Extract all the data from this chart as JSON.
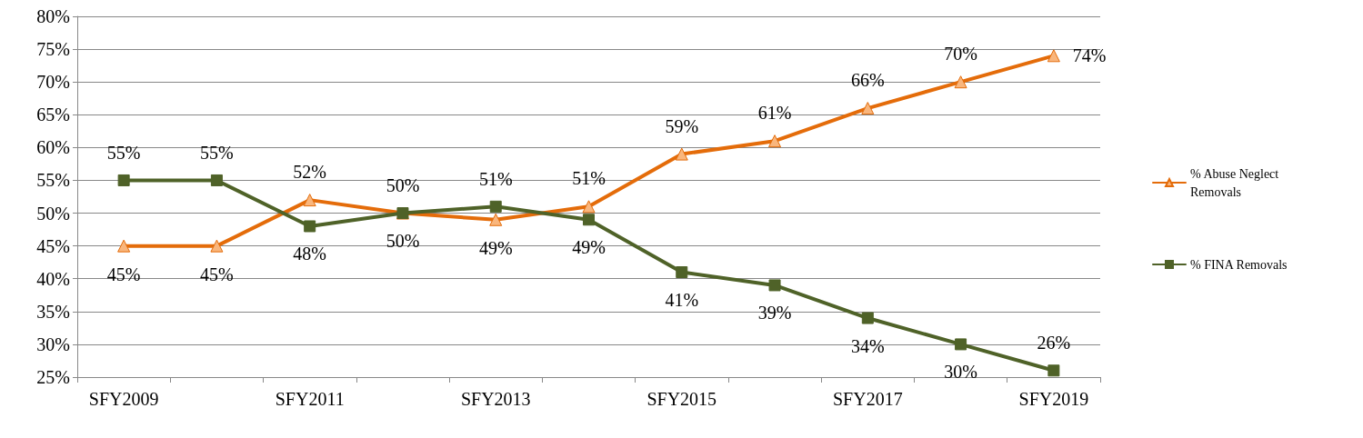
{
  "chart_data": {
    "type": "line",
    "categories": [
      "SFY2009",
      null,
      "SFY2011",
      null,
      "SFY2013",
      null,
      "SFY2015",
      null,
      "SFY2017",
      null,
      "SFY2019"
    ],
    "series": [
      {
        "name": "% Abuse Neglect Removals",
        "color": "#e46c0a",
        "marker": "triangle",
        "values": [
          45,
          45,
          52,
          50,
          49,
          51,
          59,
          61,
          66,
          70,
          74
        ],
        "value_labels": [
          "45%",
          "45%",
          "52%",
          "50%",
          "49%",
          "51%",
          "59%",
          "61%",
          "66%",
          "70%",
          "74%"
        ]
      },
      {
        "name": "% FINA Removals",
        "color": "#4f6228",
        "marker": "square",
        "values": [
          55,
          55,
          48,
          50,
          51,
          49,
          41,
          39,
          34,
          30,
          26
        ],
        "value_labels": [
          "55%",
          "55%",
          "48%",
          "50%",
          "51%",
          "49%",
          "41%",
          "39%",
          "34%",
          "30%",
          "26%"
        ]
      }
    ],
    "ylim": [
      25,
      80
    ],
    "yticks": [
      {
        "value": 25,
        "label": "25%"
      },
      {
        "value": 30,
        "label": "30%"
      },
      {
        "value": 35,
        "label": "35%"
      },
      {
        "value": 40,
        "label": "40%"
      },
      {
        "value": 45,
        "label": "45%"
      },
      {
        "value": 50,
        "label": "50%"
      },
      {
        "value": 55,
        "label": "55%"
      },
      {
        "value": 60,
        "label": "60%"
      },
      {
        "value": 65,
        "label": "65%"
      },
      {
        "value": 70,
        "label": "70%"
      },
      {
        "value": 75,
        "label": "75%"
      },
      {
        "value": 80,
        "label": "80%"
      }
    ],
    "grid": "y",
    "legend": "right"
  }
}
